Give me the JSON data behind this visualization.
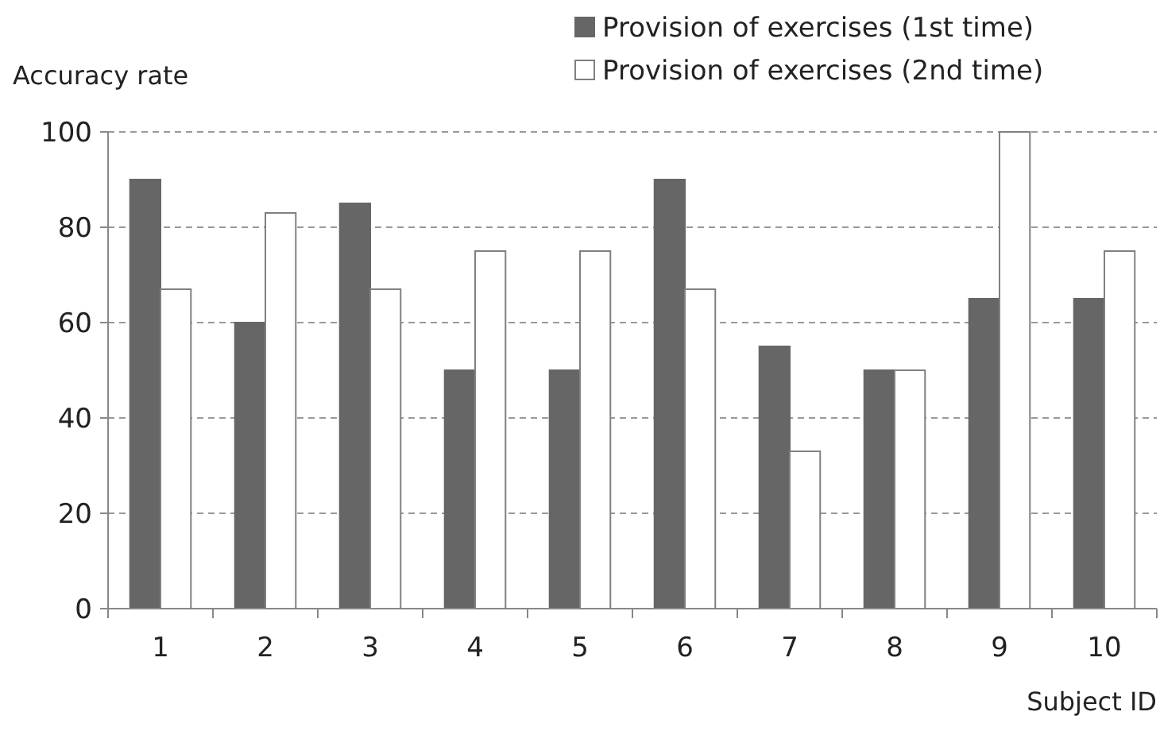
{
  "chart_data": {
    "type": "bar",
    "xlabel": "Subject ID",
    "ylabel": "Accuracy rate",
    "categories": [
      "1",
      "2",
      "3",
      "4",
      "5",
      "6",
      "7",
      "8",
      "9",
      "10"
    ],
    "series": [
      {
        "name": "Provision of exercises (1st time)",
        "color": "#666666",
        "values": [
          90,
          60,
          85,
          50,
          50,
          90,
          55,
          50,
          65,
          65
        ]
      },
      {
        "name": "Provision of exercises (2nd time)",
        "color": "#ffffff",
        "values": [
          67,
          83,
          67,
          75,
          75,
          67,
          33,
          50,
          100,
          75
        ]
      }
    ],
    "ylim": [
      0,
      100
    ],
    "yticks": [
      0,
      20,
      40,
      60,
      80,
      100
    ],
    "grid": "y",
    "legend": "top right"
  }
}
